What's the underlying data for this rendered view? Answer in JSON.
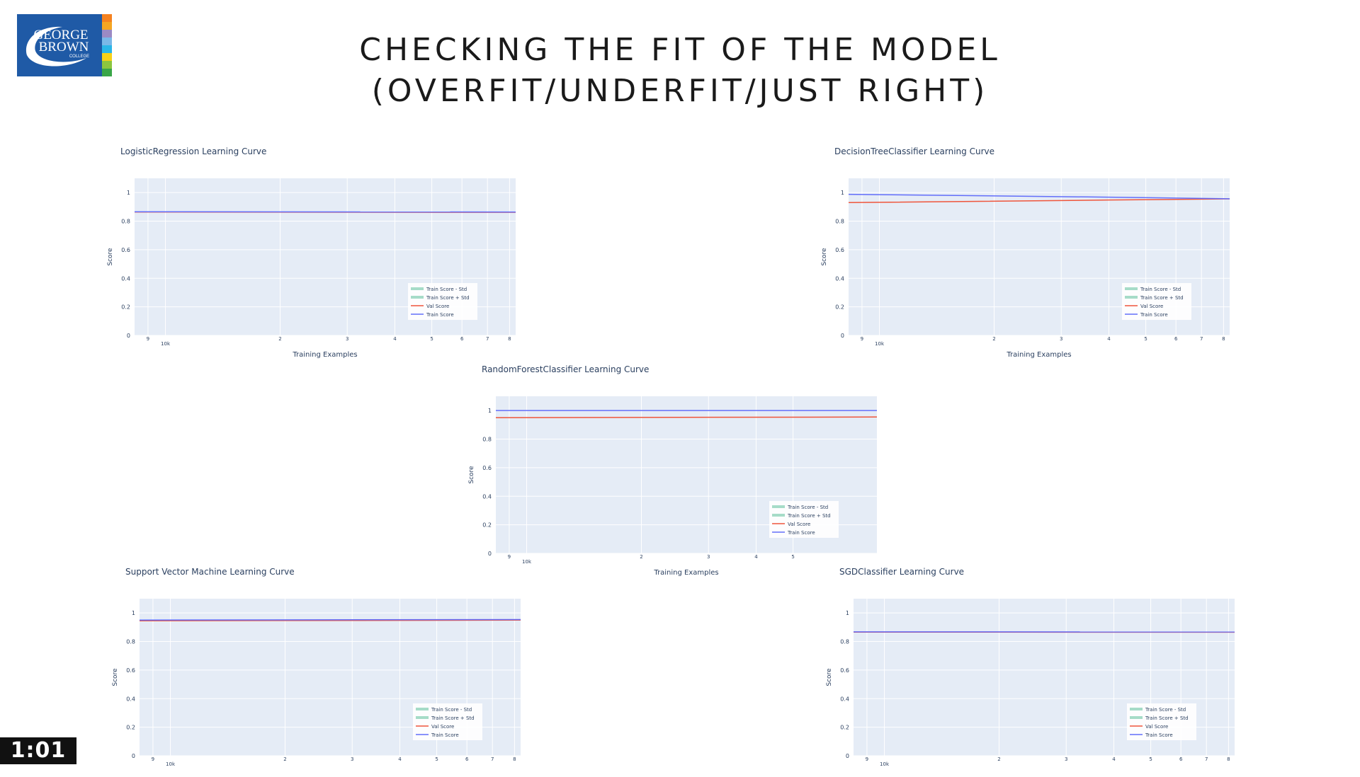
{
  "header": {
    "title_line1": "CHECKING THE FIT OF THE MODEL",
    "title_line2": "(OVERFIT/UNDERFIT/JUST RIGHT)"
  },
  "logo": {
    "line1": "GEORGE",
    "line2": "BROWN",
    "line3": "COLLEGE",
    "bg_color": "#1f5aa6",
    "stripe_colors": [
      "#f58220",
      "#f5a623",
      "#9b8ac4",
      "#7ab8e8",
      "#2bb6e8",
      "#f7d117",
      "#8cc63f",
      "#3aa648"
    ]
  },
  "timer": {
    "text": "1:01"
  },
  "colors": {
    "plot_bg": "#e5ecf6",
    "val": "#ef553b",
    "train": "#636efa",
    "band": "#a6dcc8"
  },
  "chart_data": [
    {
      "type": "line",
      "title": "LogisticRegression Learning Curve",
      "xlabel": "Training Examples",
      "ylabel": "Score",
      "ylim": [
        0,
        1.1
      ],
      "yticks": [
        "0",
        "0.2",
        "0.4",
        "0.6",
        "0.8",
        "1"
      ],
      "xticks": [
        {
          "v": 9000,
          "label": "9"
        },
        {
          "v": 10000,
          "label": "10k"
        },
        {
          "v": 20000,
          "label": "2"
        },
        {
          "v": 30000,
          "label": "3"
        },
        {
          "v": 40000,
          "label": "4"
        },
        {
          "v": 50000,
          "label": "5"
        },
        {
          "v": 60000,
          "label": "6"
        },
        {
          "v": 70000,
          "label": "7"
        },
        {
          "v": 80000,
          "label": "8"
        }
      ],
      "xlog": true,
      "xrange": [
        8300,
        83000
      ],
      "legend": [
        "Train Score - Std",
        "Train Score + Std",
        "Val Score",
        "Train Score"
      ],
      "legend_position": "bottom-right",
      "x": [
        8300,
        83000
      ],
      "series": [
        {
          "name": "Train Score - Std",
          "values": [
            0.865,
            0.863
          ]
        },
        {
          "name": "Train Score + Std",
          "values": [
            0.867,
            0.865
          ]
        },
        {
          "name": "Val Score",
          "values": [
            0.864,
            0.862
          ]
        },
        {
          "name": "Train Score",
          "values": [
            0.866,
            0.864
          ]
        }
      ]
    },
    {
      "type": "line",
      "title": "DecisionTreeClassifier Learning Curve",
      "xlabel": "Training Examples",
      "ylabel": "Score",
      "ylim": [
        0,
        1.1
      ],
      "yticks": [
        "0",
        "0.2",
        "0.4",
        "0.6",
        "0.8",
        "1"
      ],
      "xticks": [
        {
          "v": 9000,
          "label": "9"
        },
        {
          "v": 10000,
          "label": "10k"
        },
        {
          "v": 20000,
          "label": "2"
        },
        {
          "v": 30000,
          "label": "3"
        },
        {
          "v": 40000,
          "label": "4"
        },
        {
          "v": 50000,
          "label": "5"
        },
        {
          "v": 60000,
          "label": "6"
        },
        {
          "v": 70000,
          "label": "7"
        },
        {
          "v": 80000,
          "label": "8"
        }
      ],
      "xlog": true,
      "xrange": [
        8300,
        83000
      ],
      "legend": [
        "Train Score - Std",
        "Train Score + Std",
        "Val Score",
        "Train Score"
      ],
      "legend_position": "bottom-right",
      "x": [
        8300,
        40000,
        83000
      ],
      "series": [
        {
          "name": "Train Score - Std",
          "values": [
            0.985,
            0.965,
            0.955
          ]
        },
        {
          "name": "Train Score + Std",
          "values": [
            0.99,
            0.97,
            0.958
          ]
        },
        {
          "name": "Val Score",
          "values": [
            0.93,
            0.948,
            0.956
          ]
        },
        {
          "name": "Train Score",
          "values": [
            0.988,
            0.968,
            0.957
          ]
        }
      ]
    },
    {
      "type": "line",
      "title": "RandomForestClassifier Learning Curve",
      "xlabel": "Training Examples",
      "ylabel": "Score",
      "ylim": [
        0,
        1.1
      ],
      "yticks": [
        "0",
        "0.2",
        "0.4",
        "0.6",
        "0.8",
        "1"
      ],
      "xticks": [
        {
          "v": 9000,
          "label": "9"
        },
        {
          "v": 10000,
          "label": "10k"
        },
        {
          "v": 20000,
          "label": "2"
        },
        {
          "v": 30000,
          "label": "3"
        },
        {
          "v": 40000,
          "label": "4"
        },
        {
          "v": 50000,
          "label": "5"
        }
      ],
      "xlog": true,
      "xrange": [
        8300,
        83000
      ],
      "legend": [
        "Train Score - Std",
        "Train Score + Std",
        "Val Score",
        "Train Score"
      ],
      "legend_position": "bottom-right",
      "x": [
        8300,
        83000
      ],
      "series": [
        {
          "name": "Train Score - Std",
          "values": [
            0.999,
            0.999
          ]
        },
        {
          "name": "Train Score + Std",
          "values": [
            1.0,
            1.0
          ]
        },
        {
          "name": "Val Score",
          "values": [
            0.95,
            0.955
          ]
        },
        {
          "name": "Train Score",
          "values": [
            1.0,
            1.0
          ]
        }
      ]
    },
    {
      "type": "line",
      "title": "Support Vector Machine Learning Curve",
      "xlabel": "",
      "ylabel": "Score",
      "ylim": [
        0,
        1.1
      ],
      "yticks": [
        "0",
        "0.2",
        "0.4",
        "0.6",
        "0.8",
        "1"
      ],
      "xticks": [
        {
          "v": 9000,
          "label": "9"
        },
        {
          "v": 10000,
          "label": "10k"
        },
        {
          "v": 20000,
          "label": "2"
        },
        {
          "v": 30000,
          "label": "3"
        },
        {
          "v": 40000,
          "label": "4"
        },
        {
          "v": 50000,
          "label": "5"
        },
        {
          "v": 60000,
          "label": "6"
        },
        {
          "v": 70000,
          "label": "7"
        },
        {
          "v": 80000,
          "label": "8"
        }
      ],
      "xlog": true,
      "xrange": [
        8300,
        83000
      ],
      "legend": [
        "Train Score - Std",
        "Train Score + Std",
        "Val Score",
        "Train Score"
      ],
      "legend_position": "bottom-right",
      "x": [
        8300,
        83000
      ],
      "series": [
        {
          "name": "Train Score - Std",
          "values": [
            0.948,
            0.952
          ]
        },
        {
          "name": "Train Score + Std",
          "values": [
            0.952,
            0.956
          ]
        },
        {
          "name": "Val Score",
          "values": [
            0.945,
            0.95
          ]
        },
        {
          "name": "Train Score",
          "values": [
            0.95,
            0.954
          ]
        }
      ]
    },
    {
      "type": "line",
      "title": "SGDClassifier Learning Curve",
      "xlabel": "",
      "ylabel": "Score",
      "ylim": [
        0,
        1.1
      ],
      "yticks": [
        "0",
        "0.2",
        "0.4",
        "0.6",
        "0.8",
        "1"
      ],
      "xticks": [
        {
          "v": 9000,
          "label": "9"
        },
        {
          "v": 10000,
          "label": "10k"
        },
        {
          "v": 20000,
          "label": "2"
        },
        {
          "v": 30000,
          "label": "3"
        },
        {
          "v": 40000,
          "label": "4"
        },
        {
          "v": 50000,
          "label": "5"
        },
        {
          "v": 60000,
          "label": "6"
        },
        {
          "v": 70000,
          "label": "7"
        },
        {
          "v": 80000,
          "label": "8"
        }
      ],
      "xlog": true,
      "xrange": [
        8300,
        83000
      ],
      "legend": [
        "Train Score - Std",
        "Train Score + Std",
        "Val Score",
        "Train Score"
      ],
      "legend_position": "bottom-right",
      "x": [
        8300,
        83000
      ],
      "series": [
        {
          "name": "Train Score - Std",
          "values": [
            0.867,
            0.866
          ]
        },
        {
          "name": "Train Score + Std",
          "values": [
            0.869,
            0.868
          ]
        },
        {
          "name": "Val Score",
          "values": [
            0.866,
            0.865
          ]
        },
        {
          "name": "Train Score",
          "values": [
            0.868,
            0.867
          ]
        }
      ]
    }
  ]
}
